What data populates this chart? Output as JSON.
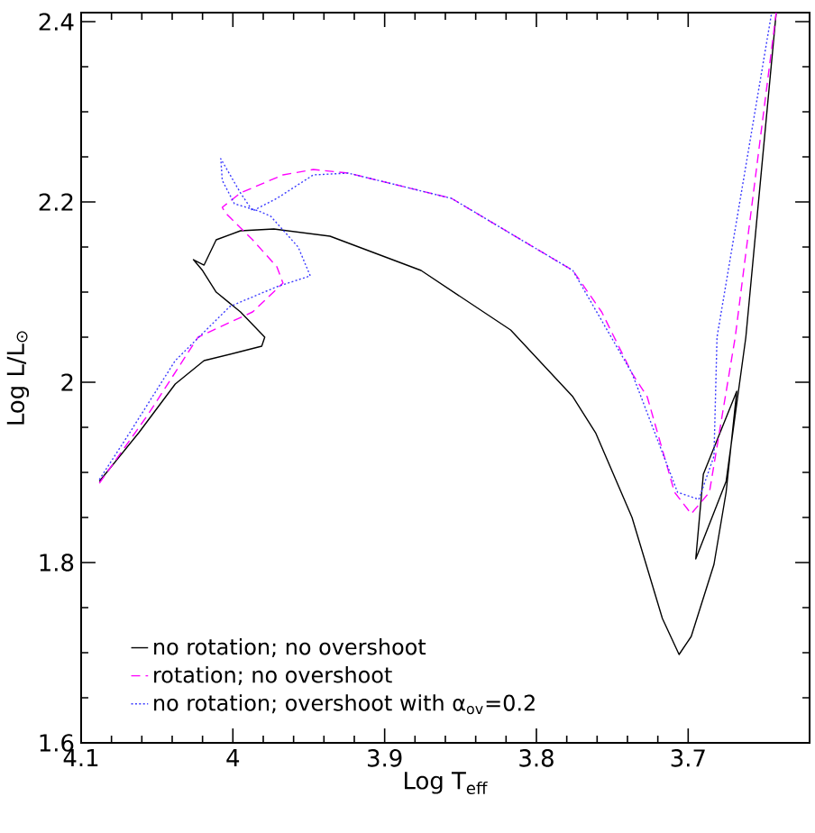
{
  "chart_data": {
    "type": "line",
    "xlabel": "Log T$_{eff}$",
    "ylabel": "Log L/L$_{⊙}$",
    "xlim": [
      4.1,
      3.62
    ],
    "ylim": [
      1.6,
      2.41
    ],
    "xticks": [
      4.1,
      4,
      3.9,
      3.8,
      3.7
    ],
    "yticks": [
      1.6,
      1.8,
      2,
      2.2,
      2.4
    ],
    "legend": "bottom left",
    "grid": false,
    "marker": "none",
    "series": [
      {
        "name": "no rotation; no overshoot",
        "color": "#000000",
        "line_style": "solid",
        "x": [
          4.088,
          4.062,
          4.038,
          4.019,
          3.995,
          3.981,
          3.979,
          3.995,
          4.011,
          4.02,
          4.026,
          4.019,
          4.011,
          3.995,
          3.973,
          3.936,
          3.876,
          3.817,
          3.776,
          3.761,
          3.737,
          3.717,
          3.706,
          3.698,
          3.683,
          3.675,
          3.668,
          3.69,
          3.695,
          3.675,
          3.662,
          3.642
        ],
        "values": [
          1.89,
          1.944,
          1.998,
          2.024,
          2.034,
          2.04,
          2.05,
          2.078,
          2.1,
          2.124,
          2.136,
          2.13,
          2.158,
          2.168,
          2.17,
          2.162,
          2.124,
          2.058,
          1.984,
          1.944,
          1.85,
          1.738,
          1.698,
          1.718,
          1.798,
          1.878,
          1.99,
          1.898,
          1.804,
          1.89,
          2.05,
          2.41
        ]
      },
      {
        "name": "rotation; no overshoot",
        "color": "#ff00ff",
        "line_style": "dashed",
        "x": [
          4.088,
          4.056,
          4.023,
          3.987,
          3.967,
          3.971,
          3.987,
          4.005,
          4.007,
          3.995,
          3.967,
          3.947,
          3.924,
          3.856,
          3.776,
          3.757,
          3.737,
          3.727,
          3.709,
          3.698,
          3.686,
          3.669,
          3.642
        ],
        "values": [
          1.888,
          1.964,
          2.05,
          2.078,
          2.11,
          2.128,
          2.158,
          2.188,
          2.194,
          2.21,
          2.23,
          2.236,
          2.232,
          2.204,
          2.124,
          2.078,
          2.01,
          1.984,
          1.878,
          1.854,
          1.878,
          2.05,
          2.41
        ]
      },
      {
        "name": "no rotation; overshoot with α$_{ov}$=0.2",
        "color": "#3a3aff",
        "line_style": "dotted",
        "x": [
          4.088,
          4.068,
          4.038,
          4.002,
          3.971,
          3.949,
          3.957,
          3.975,
          3.983,
          3.999,
          4.007,
          4.008,
          3.995,
          3.987,
          3.971,
          3.947,
          3.924,
          3.856,
          3.776,
          3.737,
          3.707,
          3.693,
          3.683,
          3.681,
          3.645
        ],
        "values": [
          1.892,
          1.944,
          2.024,
          2.084,
          2.106,
          2.118,
          2.15,
          2.184,
          2.19,
          2.198,
          2.224,
          2.248,
          2.21,
          2.19,
          2.204,
          2.23,
          2.232,
          2.204,
          2.124,
          2.01,
          1.878,
          1.87,
          1.918,
          2.05,
          2.41
        ]
      }
    ]
  }
}
